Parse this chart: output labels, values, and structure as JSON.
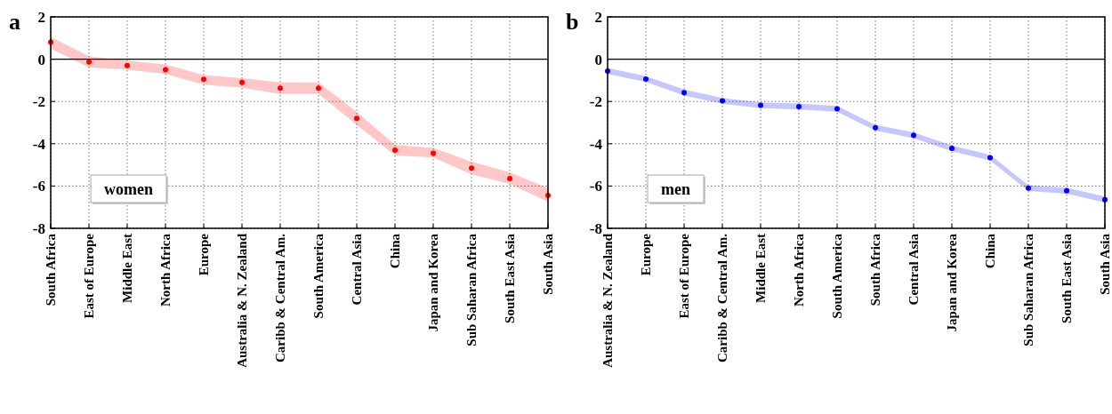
{
  "chart_data": [
    {
      "type": "scatter",
      "title": "a",
      "annotations": [
        "women"
      ],
      "categories": [
        "South Africa",
        "East of Europe",
        "Middle East",
        "North Africa",
        "Europe",
        "Australia & N. Zealand",
        "Caribb & Central Am.",
        "South America",
        "Central Asia",
        "China",
        "Japan and Korea",
        "Sub Saharan Africa",
        "South East Asia",
        "South Asia"
      ],
      "series": [
        {
          "color": "#ff0000",
          "values": [
            0.8,
            -0.13,
            -0.3,
            -0.5,
            -0.95,
            -1.1,
            -1.37,
            -1.37,
            -2.8,
            -4.3,
            -4.45,
            -5.15,
            -5.65,
            -6.45
          ],
          "lower": [
            0.5,
            -0.39,
            -0.49,
            -0.7,
            -1.2,
            -1.35,
            -1.65,
            -1.65,
            -3.1,
            -4.55,
            -4.65,
            -5.45,
            -5.9,
            -6.75
          ],
          "upper": [
            1.05,
            0.14,
            -0.07,
            -0.25,
            -0.75,
            -0.9,
            -1.1,
            -1.1,
            -2.5,
            -4.05,
            -4.2,
            -4.85,
            -5.35,
            -6.1
          ]
        }
      ],
      "ylim": [
        -8,
        2
      ],
      "yticks": [
        -8,
        -6,
        -4,
        -2,
        0,
        2
      ],
      "grid": true,
      "marker": "circle",
      "ref_lines": [
        {
          "axis": "y",
          "value": 0,
          "color": "#000000"
        }
      ]
    },
    {
      "type": "scatter",
      "title": "b",
      "annotations": [
        "men"
      ],
      "categories": [
        "Australia & N. Zealand",
        "Europe",
        "East of Europe",
        "Caribb & Central Am.",
        "Middle East",
        "North Africa",
        "South America",
        "South Africa",
        "Central Asia",
        "Japan and Korea",
        "China",
        "Sub Saharan Africa",
        "South East Asia",
        "South Asia"
      ],
      "series": [
        {
          "color": "#0000ff",
          "values": [
            -0.56,
            -0.94,
            -1.58,
            -1.97,
            -2.18,
            -2.24,
            -2.35,
            -3.24,
            -3.6,
            -4.22,
            -4.66,
            -6.1,
            -6.22,
            -6.64
          ],
          "lower": [
            -0.7,
            -1.08,
            -1.72,
            -2.11,
            -2.32,
            -2.38,
            -2.49,
            -3.38,
            -3.74,
            -4.36,
            -4.8,
            -6.24,
            -6.36,
            -6.78
          ],
          "upper": [
            -0.42,
            -0.8,
            -1.44,
            -1.83,
            -2.04,
            -2.1,
            -2.21,
            -3.1,
            -3.46,
            -4.08,
            -4.52,
            -5.96,
            -6.08,
            -6.5
          ]
        }
      ],
      "ylim": [
        -8,
        2
      ],
      "yticks": [
        -8,
        -6,
        -4,
        -2,
        0,
        2
      ],
      "grid": true,
      "marker": "circle",
      "ref_lines": [
        {
          "axis": "y",
          "value": 0,
          "color": "#000000"
        }
      ]
    }
  ]
}
